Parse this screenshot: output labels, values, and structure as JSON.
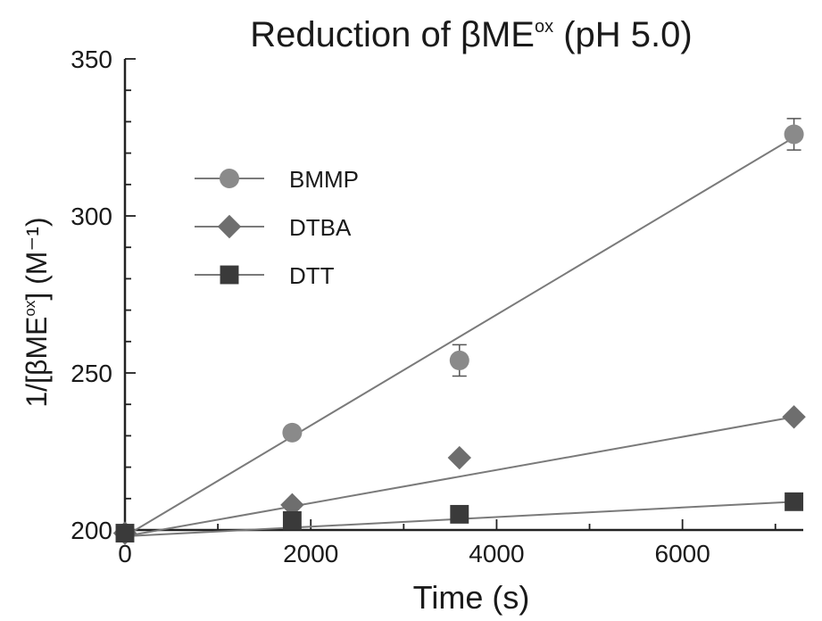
{
  "chart_data": {
    "type": "scatter",
    "title": {
      "main": "Reduction of βME",
      "sup": "ox",
      "tail": " (pH 5.0)"
    },
    "xlabel": "Time (s)",
    "ylabel": {
      "pre": "1/[βME",
      "sup": "ox",
      "post": "] (M⁻¹)"
    },
    "xlim": [
      0,
      7300
    ],
    "ylim": [
      200,
      350
    ],
    "x_major_ticks": [
      0,
      2000,
      4000,
      6000
    ],
    "x_tick_labels": [
      "0",
      "2000",
      "4000",
      "6000"
    ],
    "y_major_ticks": [
      200,
      250,
      300,
      350
    ],
    "y_tick_labels": [
      "200",
      "250",
      "300",
      "350"
    ],
    "grid": false,
    "legend_position": "upper-left",
    "series": [
      {
        "name": "BMMP",
        "marker": "circle",
        "color": "#8a8a8a",
        "x": [
          0,
          1800,
          3600,
          7200
        ],
        "y": [
          199,
          231,
          254,
          326
        ],
        "y_err": [
          0,
          0,
          5,
          5
        ],
        "fit": {
          "x": [
            0,
            7200
          ],
          "y": [
            198,
            325
          ]
        }
      },
      {
        "name": "DTBA",
        "marker": "diamond",
        "color": "#6e6e6e",
        "x": [
          0,
          1800,
          3600,
          7200
        ],
        "y": [
          199,
          208,
          223,
          236
        ],
        "y_err": [
          0,
          0,
          0,
          0
        ],
        "fit": {
          "x": [
            0,
            7200
          ],
          "y": [
            198,
            236
          ]
        }
      },
      {
        "name": "DTT",
        "marker": "square",
        "color": "#3a3a3a",
        "x": [
          0,
          1800,
          3600,
          7200
        ],
        "y": [
          199,
          203,
          205,
          209
        ],
        "y_err": [
          0,
          0,
          0,
          0
        ],
        "fit": {
          "x": [
            0,
            7200
          ],
          "y": [
            198,
            209
          ]
        }
      }
    ]
  }
}
